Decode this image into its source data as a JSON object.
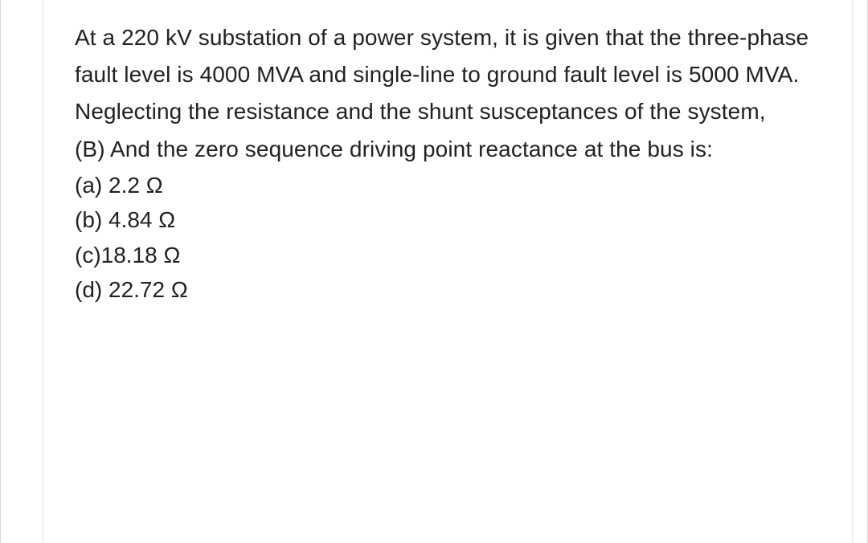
{
  "question": {
    "stem_line1": "At a 220 kV substation of a power system, it is given that the three-phase fault level is 4000 MVA and single-line to ground fault level is 5000 MVA. Neglecting the resistance and the shunt susceptances of the system,",
    "part_label": "(B) And the zero sequence driving point reactance at the bus is:",
    "options": [
      "(a) 2.2 Ω",
      "(b) 4.84 Ω",
      "(c)18.18 Ω",
      "(d) 22.72 Ω"
    ]
  },
  "style": {
    "text_color": "#212121",
    "background_color": "#ffffff",
    "font_size_pt": 21,
    "line_height": 1.65,
    "rule_color": "#e6e6e6",
    "outer_rule_color": "#d9d9d9"
  }
}
